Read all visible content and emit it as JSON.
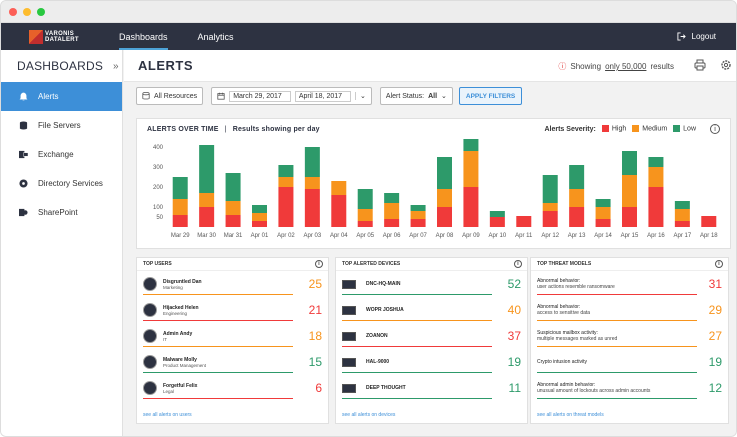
{
  "nav": {
    "logo_line1": "VARONIS",
    "logo_line2": "DATALERT",
    "tabs": [
      "Dashboards",
      "Analytics"
    ],
    "logout": "Logout"
  },
  "sidebar": {
    "title": "DASHBOARDS",
    "items": [
      {
        "label": "Alerts",
        "icon": "bell-icon"
      },
      {
        "label": "File Servers",
        "icon": "database-icon"
      },
      {
        "label": "Exchange",
        "icon": "exchange-icon"
      },
      {
        "label": "Directory Services",
        "icon": "directory-icon"
      },
      {
        "label": "SharePoint",
        "icon": "sharepoint-icon"
      }
    ]
  },
  "header": {
    "title": "ALERTS",
    "showing_prefix": "Showing ",
    "showing_only": "only 50,000",
    "showing_suffix": " results"
  },
  "filters": {
    "resources": "All Resources",
    "date_from": "March 29, 2017",
    "date_to": "April 18, 2017",
    "status_label": "Alert Status:",
    "status_value": "All",
    "apply": "APPLY FILTERS"
  },
  "chart_card": {
    "title": "ALERTS OVER TIME",
    "subtitle": "Results showing per day",
    "severity_label": "Alerts Severity:",
    "legend": [
      {
        "name": "High",
        "color": "#f03a3a"
      },
      {
        "name": "Medium",
        "color": "#f7941d"
      },
      {
        "name": "Low",
        "color": "#2d9a6a"
      }
    ]
  },
  "chart_data": {
    "type": "bar",
    "stacked": true,
    "categories": [
      "Mar 29",
      "Mar 30",
      "Mar 31",
      "Apr 01",
      "Apr 02",
      "Apr 03",
      "Apr 04",
      "Apr 05",
      "Apr 06",
      "Apr 07",
      "Apr 08",
      "Apr 09",
      "Apr 10",
      "Apr 11",
      "Apr 12",
      "Apr 13",
      "Apr 14",
      "Apr 15",
      "Apr 16",
      "Apr 17",
      "Apr 18"
    ],
    "yticks": [
      50,
      100,
      200,
      300,
      400
    ],
    "ylim": [
      0,
      400
    ],
    "series": [
      {
        "name": "High",
        "color": "#f03a3a",
        "values": [
          60,
          100,
          60,
          30,
          200,
          190,
          160,
          30,
          40,
          40,
          100,
          200,
          50,
          55,
          80,
          100,
          40,
          100,
          200,
          30,
          55
        ]
      },
      {
        "name": "Medium",
        "color": "#f7941d",
        "values": [
          80,
          70,
          70,
          40,
          50,
          60,
          70,
          60,
          80,
          40,
          90,
          180,
          0,
          0,
          40,
          90,
          60,
          160,
          100,
          60,
          0
        ]
      },
      {
        "name": "Low",
        "color": "#2d9a6a",
        "values": [
          110,
          240,
          140,
          40,
          60,
          150,
          0,
          100,
          50,
          30,
          160,
          60,
          30,
          0,
          140,
          120,
          40,
          120,
          50,
          40,
          0
        ]
      }
    ]
  },
  "top_users": {
    "title": "TOP USERS",
    "link": "see all alerts on users",
    "rows": [
      {
        "name": "Disgruntled Dan",
        "dept": "Marketing",
        "value": "25",
        "color": "#f7941d"
      },
      {
        "name": "Hijacked Helen",
        "dept": "Engineering",
        "value": "21",
        "color": "#f03a3a"
      },
      {
        "name": "Admin Andy",
        "dept": "IT",
        "value": "18",
        "color": "#f7941d"
      },
      {
        "name": "Malware Molly",
        "dept": "Product Management",
        "value": "15",
        "color": "#2d9a6a"
      },
      {
        "name": "Forgetful Felix",
        "dept": "Legal",
        "value": "6",
        "color": "#f03a3a"
      }
    ]
  },
  "top_devices": {
    "title": "TOP ALERTED DEVICES",
    "link": "see all alerts on devices",
    "rows": [
      {
        "name": "DNC-HQ-MAIN",
        "value": "52",
        "color": "#2d9a6a"
      },
      {
        "name": "WOPR JOSHUA",
        "value": "40",
        "color": "#f7941d"
      },
      {
        "name": "ZOANON",
        "value": "37",
        "color": "#f03a3a"
      },
      {
        "name": "HAL-9000",
        "value": "19",
        "color": "#2d9a6a"
      },
      {
        "name": "DEEP THOUGHT",
        "value": "11",
        "color": "#2d9a6a"
      }
    ]
  },
  "top_threats": {
    "title": "TOP THREAT MODELS",
    "link": "see all alerts on threat models",
    "rows": [
      {
        "line1": "Abnormal behavior:",
        "line2": "user actions resemble ransomware",
        "value": "31",
        "color": "#f03a3a"
      },
      {
        "line1": "Abnormal behavior:",
        "line2": "access to sensitive data",
        "value": "29",
        "color": "#f7941d"
      },
      {
        "line1": "Suspicious mailbox activity:",
        "line2": "multiple messages marked as unred",
        "value": "27",
        "color": "#f7941d"
      },
      {
        "line1": "Crypto intusion activity",
        "line2": "",
        "value": "19",
        "color": "#2d9a6a"
      },
      {
        "line1": "Abnormal admin behavior:",
        "line2": "unusual amount of lockouts across admin accounts",
        "value": "12",
        "color": "#2d9a6a"
      }
    ]
  }
}
